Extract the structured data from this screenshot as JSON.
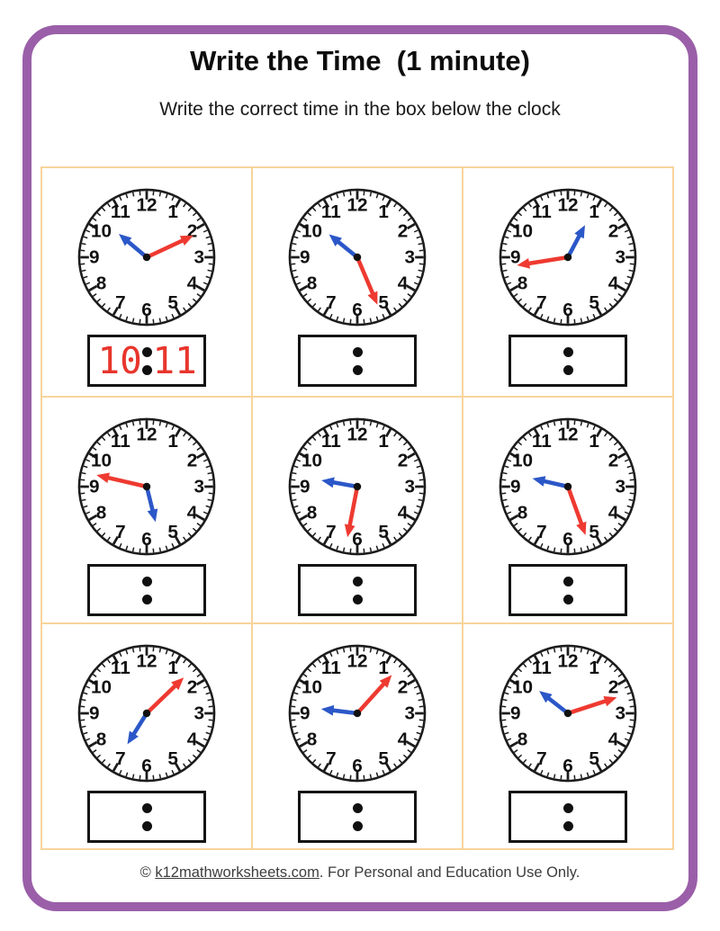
{
  "header": {
    "title": "Write the Time  (1 minute)",
    "subtitle": "Write the correct time in the box below the clock"
  },
  "footer": {
    "prefix": "© ",
    "link_text": "k12mathworksheets.com",
    "suffix": ". For Personal and Education Use Only."
  },
  "colors": {
    "frame_purple": "#9a5fa8",
    "grid_orange": "#f8d49c",
    "clock_ink": "#1c1c1c",
    "minute_hand_red": "#ee3a31",
    "hour_hand_blue": "#2b57c8",
    "answer_red": "#e8362d"
  },
  "dial_numbers": [
    "1",
    "2",
    "3",
    "4",
    "5",
    "6",
    "7",
    "8",
    "9",
    "10",
    "11",
    "12"
  ],
  "clocks": [
    {
      "hour_hand_angle_deg": 310,
      "minute_hand_angle_deg": 65,
      "answer_hour": "10",
      "answer_minute": "11"
    },
    {
      "hour_hand_angle_deg": 309,
      "minute_hand_angle_deg": 157,
      "answer_hour": "",
      "answer_minute": ""
    },
    {
      "hour_hand_angle_deg": 28,
      "minute_hand_angle_deg": 261,
      "answer_hour": "",
      "answer_minute": ""
    },
    {
      "hour_hand_angle_deg": 166,
      "minute_hand_angle_deg": 283,
      "answer_hour": "",
      "answer_minute": ""
    },
    {
      "hour_hand_angle_deg": 280,
      "minute_hand_angle_deg": 191,
      "answer_hour": "",
      "answer_minute": ""
    },
    {
      "hour_hand_angle_deg": 283,
      "minute_hand_angle_deg": 160,
      "answer_hour": "",
      "answer_minute": ""
    },
    {
      "hour_hand_angle_deg": 212,
      "minute_hand_angle_deg": 46,
      "answer_hour": "",
      "answer_minute": ""
    },
    {
      "hour_hand_angle_deg": 277,
      "minute_hand_angle_deg": 42,
      "answer_hour": "",
      "answer_minute": ""
    },
    {
      "hour_hand_angle_deg": 308,
      "minute_hand_angle_deg": 72,
      "answer_hour": "",
      "answer_minute": ""
    }
  ]
}
